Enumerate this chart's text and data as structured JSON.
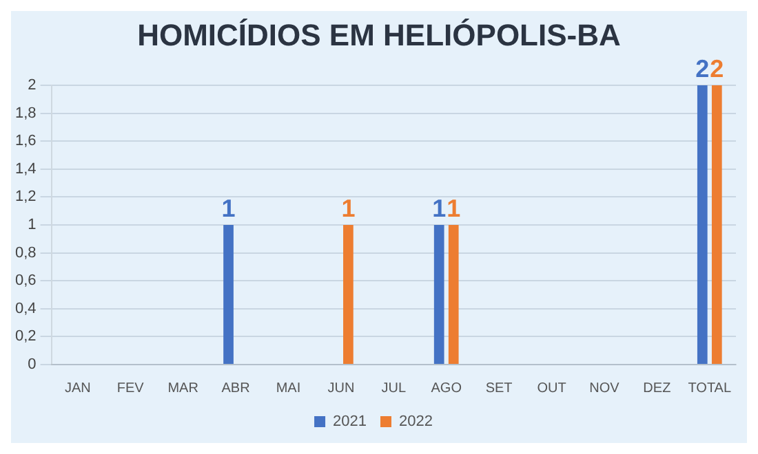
{
  "chart_data": {
    "type": "bar",
    "title": "HOMICÍDIOS EM HELIÓPOLIS-BA",
    "categories": [
      "JAN",
      "FEV",
      "MAR",
      "ABR",
      "MAI",
      "JUN",
      "JUL",
      "AGO",
      "SET",
      "OUT",
      "NOV",
      "DEZ",
      "TOTAL"
    ],
    "series": [
      {
        "name": "2021",
        "color": "#4472c4",
        "values": [
          0,
          0,
          0,
          1,
          0,
          0,
          0,
          1,
          0,
          0,
          0,
          0,
          2
        ],
        "value_labels": [
          null,
          null,
          null,
          "1",
          null,
          null,
          null,
          "1",
          null,
          null,
          null,
          null,
          "2"
        ]
      },
      {
        "name": "2022",
        "color": "#ed7d31",
        "values": [
          0,
          0,
          0,
          0,
          0,
          1,
          0,
          1,
          0,
          0,
          0,
          0,
          2
        ],
        "value_labels": [
          null,
          null,
          null,
          null,
          null,
          "1",
          null,
          "1",
          null,
          null,
          null,
          null,
          "2"
        ]
      }
    ],
    "ylim": [
      0,
      2
    ],
    "yticks": [
      0,
      {
        "value": 0.2,
        "label": "0,2"
      },
      {
        "value": 0.4,
        "label": "0,4"
      },
      {
        "value": 0.6,
        "label": "0,6"
      },
      {
        "value": 0.8,
        "label": "0,8"
      },
      1,
      {
        "value": 1.2,
        "label": "1,2"
      },
      {
        "value": 1.4,
        "label": "1,4"
      },
      {
        "value": 1.6,
        "label": "1,6"
      },
      {
        "value": 1.8,
        "label": "1,8"
      },
      2
    ],
    "grid": "y",
    "legend": "bottom"
  }
}
